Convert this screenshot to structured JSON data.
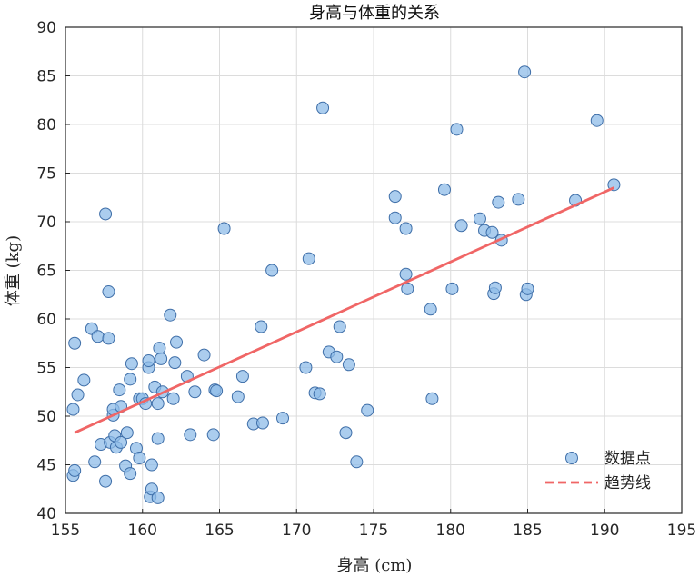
{
  "chart_data": {
    "type": "scatter",
    "title": "身高与体重的关系",
    "xlabel": "身高 (cm)",
    "ylabel": "体重 (kg)",
    "xlim": [
      155,
      195
    ],
    "ylim": [
      40,
      90
    ],
    "xticks": [
      155,
      160,
      165,
      170,
      175,
      180,
      185,
      190,
      195
    ],
    "yticks": [
      40,
      45,
      50,
      55,
      60,
      65,
      70,
      75,
      80,
      85,
      90
    ],
    "grid": true,
    "legend_position": "bottom-right",
    "series": [
      {
        "name": "数据点",
        "type": "scatter",
        "color": "#8fbce8",
        "edge_color": "#3e6ea8",
        "points": [
          [
            155.6,
            57.5
          ],
          [
            155.5,
            50.7
          ],
          [
            155.5,
            43.9
          ],
          [
            155.6,
            44.4
          ],
          [
            155.8,
            52.2
          ],
          [
            156.2,
            53.7
          ],
          [
            156.7,
            59.0
          ],
          [
            156.9,
            45.3
          ],
          [
            157.1,
            58.2
          ],
          [
            157.3,
            47.1
          ],
          [
            157.6,
            70.8
          ],
          [
            157.6,
            43.3
          ],
          [
            157.8,
            58.0
          ],
          [
            157.8,
            62.8
          ],
          [
            157.9,
            47.3
          ],
          [
            158.1,
            50.1
          ],
          [
            158.1,
            50.7
          ],
          [
            158.2,
            48.0
          ],
          [
            158.3,
            46.8
          ],
          [
            158.5,
            52.7
          ],
          [
            158.6,
            51.0
          ],
          [
            158.6,
            47.3
          ],
          [
            158.9,
            44.9
          ],
          [
            159.0,
            48.3
          ],
          [
            159.2,
            44.1
          ],
          [
            159.2,
            53.8
          ],
          [
            159.3,
            55.4
          ],
          [
            159.6,
            46.7
          ],
          [
            159.8,
            51.8
          ],
          [
            159.8,
            45.7
          ],
          [
            160.0,
            51.8
          ],
          [
            160.2,
            51.3
          ],
          [
            160.4,
            55.0
          ],
          [
            160.4,
            55.7
          ],
          [
            160.5,
            41.7
          ],
          [
            160.6,
            45.0
          ],
          [
            160.6,
            42.5
          ],
          [
            160.8,
            53.0
          ],
          [
            161.0,
            41.6
          ],
          [
            161.0,
            51.3
          ],
          [
            161.0,
            47.7
          ],
          [
            161.1,
            57.0
          ],
          [
            161.2,
            55.9
          ],
          [
            161.3,
            52.5
          ],
          [
            161.8,
            60.4
          ],
          [
            162.0,
            51.8
          ],
          [
            162.1,
            55.5
          ],
          [
            162.2,
            57.6
          ],
          [
            162.9,
            54.1
          ],
          [
            163.1,
            48.1
          ],
          [
            163.4,
            52.5
          ],
          [
            164.0,
            56.3
          ],
          [
            164.6,
            48.1
          ],
          [
            164.7,
            52.7
          ],
          [
            164.8,
            52.6
          ],
          [
            165.3,
            69.3
          ],
          [
            166.2,
            52.0
          ],
          [
            166.5,
            54.1
          ],
          [
            167.2,
            49.2
          ],
          [
            167.7,
            59.2
          ],
          [
            167.8,
            49.3
          ],
          [
            168.4,
            65.0
          ],
          [
            169.1,
            49.8
          ],
          [
            170.6,
            55.0
          ],
          [
            170.8,
            66.2
          ],
          [
            171.2,
            52.4
          ],
          [
            171.5,
            52.3
          ],
          [
            171.7,
            81.7
          ],
          [
            172.1,
            56.6
          ],
          [
            172.6,
            56.1
          ],
          [
            172.8,
            59.2
          ],
          [
            173.2,
            48.3
          ],
          [
            173.4,
            55.3
          ],
          [
            173.9,
            45.3
          ],
          [
            174.6,
            50.6
          ],
          [
            176.4,
            72.6
          ],
          [
            176.4,
            70.4
          ],
          [
            177.1,
            69.3
          ],
          [
            177.1,
            64.6
          ],
          [
            177.2,
            63.1
          ],
          [
            178.7,
            61.0
          ],
          [
            178.8,
            51.8
          ],
          [
            179.6,
            73.3
          ],
          [
            180.1,
            63.1
          ],
          [
            180.4,
            79.5
          ],
          [
            180.7,
            69.6
          ],
          [
            181.9,
            70.3
          ],
          [
            182.2,
            69.1
          ],
          [
            182.7,
            68.9
          ],
          [
            182.8,
            62.6
          ],
          [
            182.9,
            63.2
          ],
          [
            183.1,
            72.0
          ],
          [
            183.3,
            68.1
          ],
          [
            184.4,
            72.3
          ],
          [
            184.8,
            85.4
          ],
          [
            184.9,
            62.5
          ],
          [
            185.0,
            63.1
          ],
          [
            188.1,
            72.2
          ],
          [
            189.5,
            80.4
          ],
          [
            190.6,
            73.8
          ]
        ]
      },
      {
        "name": "趋势线",
        "type": "line",
        "style": "dashed",
        "color": "#f06666",
        "x": [
          155.6,
          190.6
        ],
        "y": [
          48.3,
          73.5
        ]
      }
    ]
  }
}
